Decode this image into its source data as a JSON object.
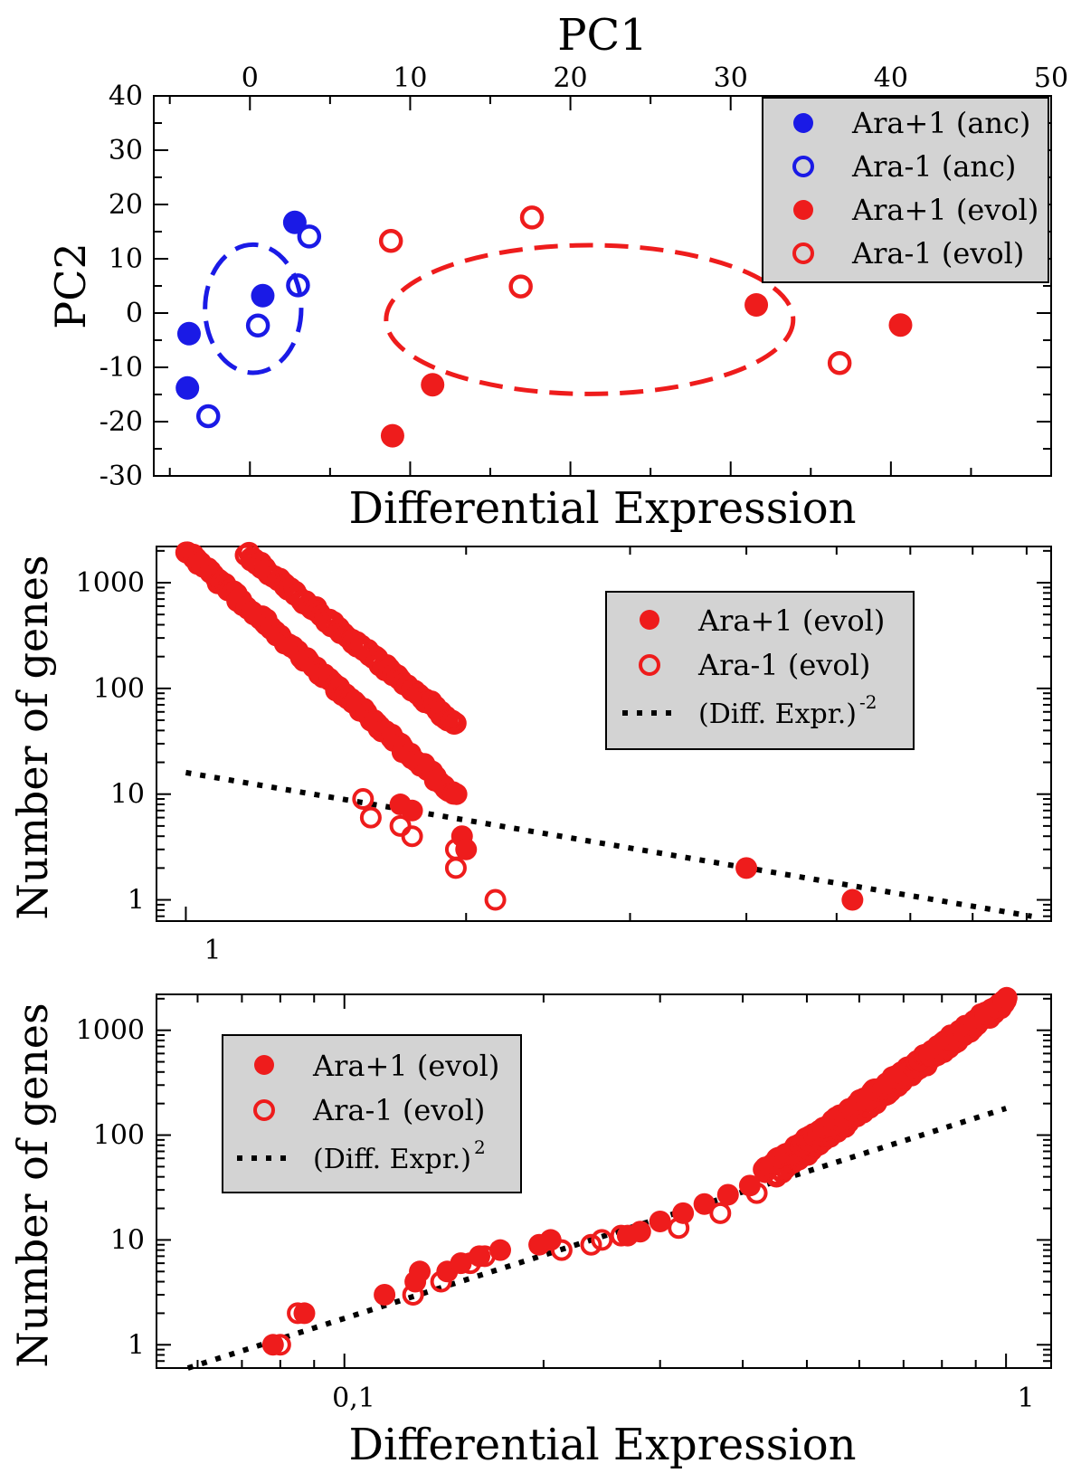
{
  "colors": {
    "blue": "#1a1ae6",
    "red": "#ee1c1c",
    "legend_bg": "#d3d3d3",
    "fit_line": "#000000"
  },
  "chart_data": [
    {
      "id": "pca",
      "type": "scatter",
      "title": "PC1",
      "xlabel": "",
      "ylabel": "PC2",
      "xlim": [
        -6,
        50
      ],
      "ylim": [
        -30,
        40
      ],
      "x_ticks": [
        0,
        10,
        20,
        30,
        40,
        50
      ],
      "y_ticks": [
        -30,
        -20,
        -10,
        0,
        10,
        20,
        30,
        40
      ],
      "x_tick_labels": [
        "0",
        "10",
        "20",
        "30",
        "40",
        "50"
      ],
      "y_tick_labels": [
        "-30",
        "-20",
        "-10",
        "0",
        "10",
        "20",
        "30",
        "40"
      ],
      "legend_position": "top-right",
      "series": [
        {
          "name": "Ara+1 (anc)",
          "color": "blue",
          "filled": true,
          "points": [
            [
              -3.8,
              -3.8
            ],
            [
              -3.9,
              -13.8
            ],
            [
              2.8,
              16.7
            ],
            [
              0.8,
              3.2
            ]
          ]
        },
        {
          "name": "Ara-1 (anc)",
          "color": "blue",
          "filled": false,
          "points": [
            [
              -2.6,
              -19.0
            ],
            [
              0.5,
              -2.3
            ],
            [
              3.0,
              5.1
            ],
            [
              3.7,
              14.1
            ]
          ]
        },
        {
          "name": "Ara+1 (evol)",
          "color": "red",
          "filled": true,
          "points": [
            [
              8.9,
              -22.6
            ],
            [
              11.4,
              -13.2
            ],
            [
              31.6,
              1.5
            ],
            [
              40.6,
              -2.2
            ]
          ]
        },
        {
          "name": "Ara-1 (evol)",
          "color": "red",
          "filled": false,
          "points": [
            [
              8.8,
              13.3
            ],
            [
              16.9,
              4.9
            ],
            [
              17.6,
              17.6
            ],
            [
              36.8,
              -9.2
            ]
          ]
        }
      ],
      "ellipses": [
        {
          "color": "blue",
          "cx": 0.2,
          "cy": 0.8,
          "rx": 3.0,
          "ry": 11.8
        },
        {
          "color": "red",
          "cx": 21.2,
          "cy": -1.2,
          "rx": 12.7,
          "ry": 13.7
        }
      ]
    },
    {
      "id": "dist-neg",
      "type": "scatter",
      "title": "Differential Expression",
      "xlabel": "",
      "ylabel": "Number of genes",
      "x_scale": "log",
      "y_scale": "log",
      "xlim": [
        0.93,
        8.5
      ],
      "ylim": [
        0.63,
        2200
      ],
      "x_tick_labels": [
        "1"
      ],
      "y_tick_labels": [
        "1",
        "10",
        "100",
        "1000"
      ],
      "legend_position": "top-right",
      "legend": [
        {
          "label": "Ara+1 (evol)",
          "kind": "filled"
        },
        {
          "label": "Ara-1 (evol)",
          "kind": "open"
        },
        {
          "label": "(Diff. Expr.)",
          "sup": "-2",
          "kind": "dotted"
        }
      ],
      "filled_range": [
        1.0,
        1.95
      ],
      "open_range": [
        1.16,
        1.95
      ],
      "filled_points": [
        [
          1.7,
          8
        ],
        [
          1.75,
          7
        ],
        [
          1.98,
          4
        ],
        [
          2.0,
          3
        ],
        [
          4.0,
          2
        ],
        [
          5.2,
          1
        ]
      ],
      "open_points": [
        [
          1.55,
          9
        ],
        [
          1.58,
          6
        ],
        [
          1.7,
          5
        ],
        [
          1.75,
          4
        ],
        [
          1.95,
          3
        ],
        [
          1.95,
          2
        ],
        [
          2.15,
          1
        ]
      ],
      "fit_line": {
        "exponent": -2,
        "from": [
          1.0,
          16
        ],
        "to": [
          8.1,
          0.7
        ]
      }
    },
    {
      "id": "dist-pos",
      "type": "scatter",
      "title": "",
      "xlabel": "Differential Expression",
      "ylabel": "Number of genes",
      "x_scale": "log",
      "y_scale": "log",
      "xlim": [
        0.052,
        1.17
      ],
      "ylim": [
        0.6,
        2200
      ],
      "x_tick_labels": [
        "0,1",
        "1"
      ],
      "y_tick_labels": [
        "1",
        "10",
        "100",
        "1000"
      ],
      "legend_position": "top-left",
      "legend": [
        {
          "label": "Ara+1 (evol)",
          "kind": "filled"
        },
        {
          "label": "Ara-1 (evol)",
          "kind": "open"
        },
        {
          "label": "(Diff. Expr.)",
          "sup": "2",
          "kind": "dotted"
        }
      ],
      "filled_range": [
        0.43,
        1.0
      ],
      "open_range": [
        0.45,
        1.0
      ],
      "filled_points": [
        [
          0.078,
          1
        ],
        [
          0.087,
          2
        ],
        [
          0.115,
          3
        ],
        [
          0.128,
          4
        ],
        [
          0.13,
          5
        ],
        [
          0.143,
          5
        ],
        [
          0.15,
          6
        ],
        [
          0.16,
          7
        ],
        [
          0.172,
          8
        ],
        [
          0.197,
          9
        ],
        [
          0.205,
          10
        ],
        [
          0.268,
          11
        ],
        [
          0.28,
          12
        ],
        [
          0.3,
          15
        ],
        [
          0.325,
          18
        ],
        [
          0.35,
          22
        ],
        [
          0.38,
          27
        ],
        [
          0.41,
          33
        ]
      ],
      "open_points": [
        [
          0.08,
          1
        ],
        [
          0.085,
          2
        ],
        [
          0.127,
          3
        ],
        [
          0.14,
          4
        ],
        [
          0.155,
          6
        ],
        [
          0.163,
          7
        ],
        [
          0.213,
          8
        ],
        [
          0.236,
          9
        ],
        [
          0.245,
          10
        ],
        [
          0.262,
          11
        ],
        [
          0.32,
          13
        ],
        [
          0.37,
          18
        ],
        [
          0.42,
          28
        ]
      ],
      "fit_line": {
        "exponent": 2,
        "from": [
          0.058,
          0.6
        ],
        "to": [
          1.0,
          180
        ]
      }
    }
  ]
}
